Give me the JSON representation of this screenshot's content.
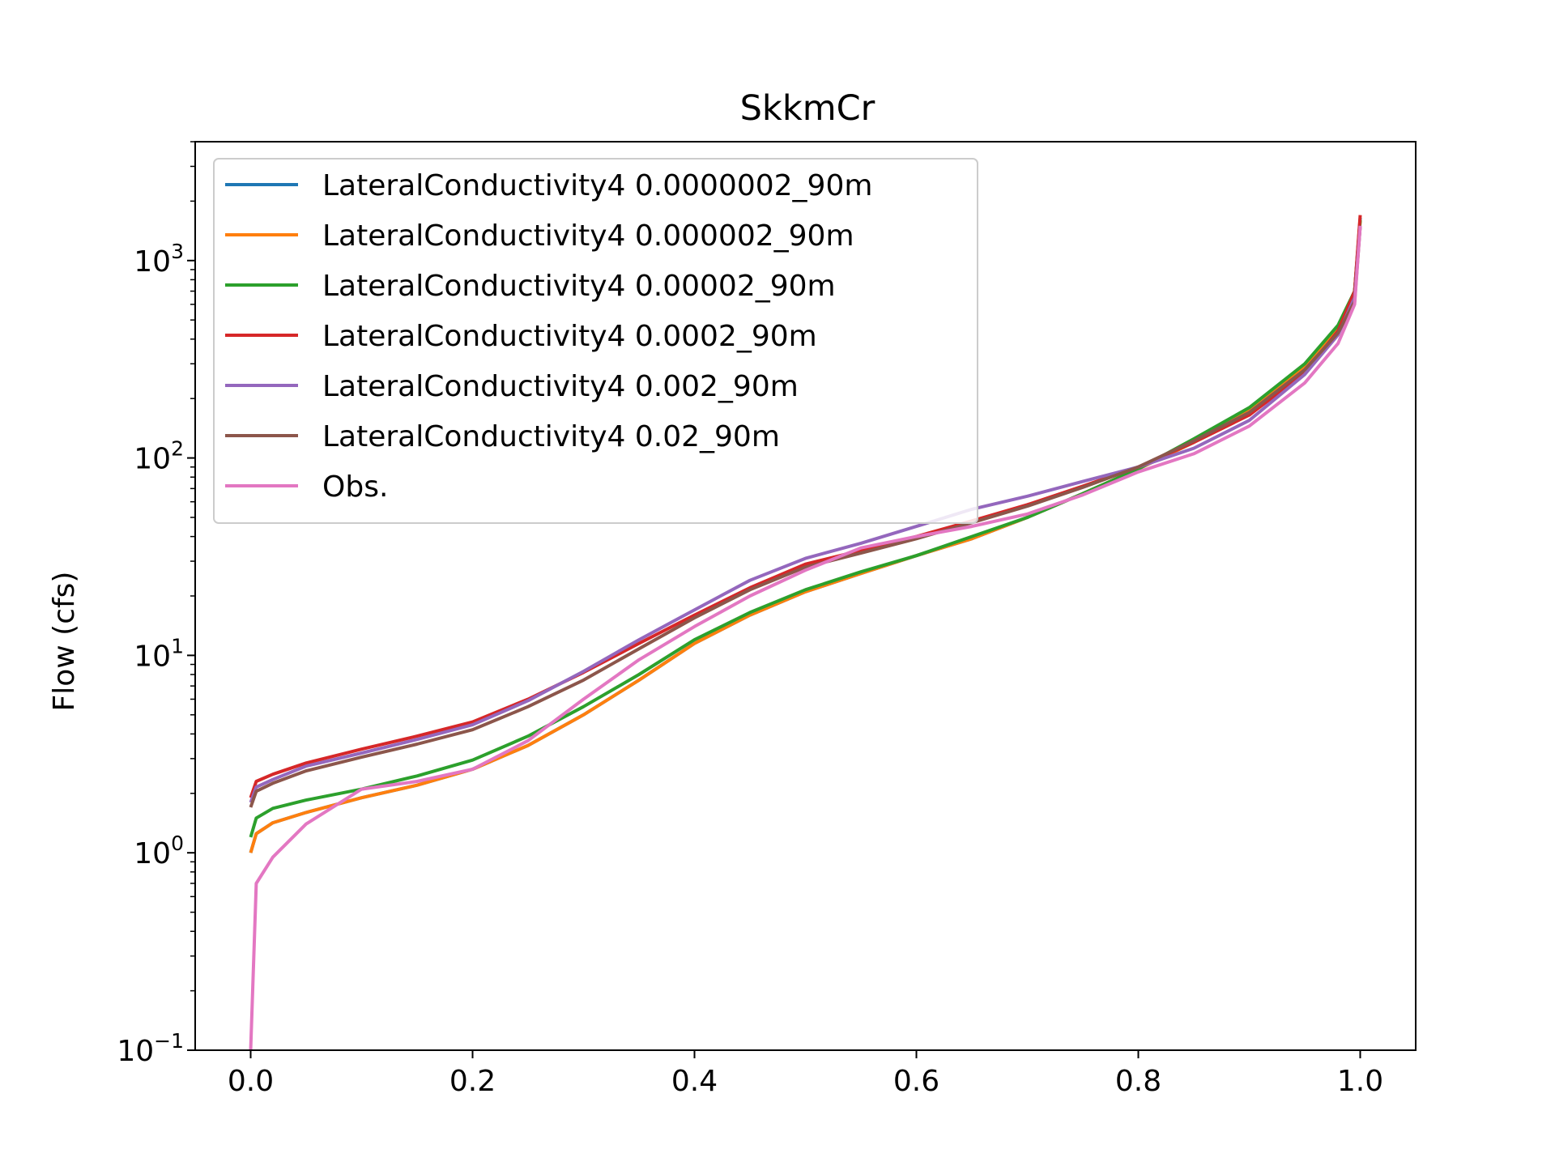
{
  "chart_data": {
    "type": "line",
    "title": "SkkmCr",
    "xlabel": "",
    "ylabel": "Flow (cfs)",
    "yscale": "log",
    "xlim": [
      -0.05,
      1.05
    ],
    "ylim": [
      0.1,
      4000
    ],
    "xticks": [
      0.0,
      0.2,
      0.4,
      0.6,
      0.8,
      1.0
    ],
    "xtick_labels": [
      "0.0",
      "0.2",
      "0.4",
      "0.6",
      "0.8",
      "1.0"
    ],
    "yticks": [
      {
        "value": 0.1,
        "base": "10",
        "exp": "−1"
      },
      {
        "value": 1,
        "base": "10",
        "exp": "0"
      },
      {
        "value": 10,
        "base": "10",
        "exp": "1"
      },
      {
        "value": 100,
        "base": "10",
        "exp": "2"
      },
      {
        "value": 1000,
        "base": "10",
        "exp": "3"
      }
    ],
    "grid": false,
    "legend_position": "upper-left",
    "x": [
      0.0,
      0.005,
      0.02,
      0.05,
      0.1,
      0.15,
      0.2,
      0.25,
      0.3,
      0.35,
      0.4,
      0.45,
      0.5,
      0.55,
      0.6,
      0.65,
      0.7,
      0.75,
      0.8,
      0.85,
      0.9,
      0.95,
      0.98,
      0.995,
      1.0
    ],
    "series": [
      {
        "name": "LateralConductivity4 0.0000002_90m",
        "color": "#1f77b4",
        "values": [
          1.0,
          1.25,
          1.42,
          1.6,
          1.9,
          2.2,
          2.65,
          3.5,
          5.0,
          7.5,
          11.5,
          16.0,
          21.0,
          26.0,
          32.0,
          39.0,
          50.0,
          66.0,
          88.0,
          120.0,
          175.0,
          290.0,
          450.0,
          700.0,
          1650.0
        ]
      },
      {
        "name": "LateralConductivity4 0.000002_90m",
        "color": "#ff7f0e",
        "values": [
          1.0,
          1.25,
          1.42,
          1.6,
          1.9,
          2.2,
          2.65,
          3.5,
          5.0,
          7.5,
          11.5,
          16.0,
          21.0,
          26.0,
          32.0,
          39.0,
          50.0,
          66.0,
          88.0,
          120.0,
          175.0,
          290.0,
          450.0,
          700.0,
          1600.0
        ]
      },
      {
        "name": "LateralConductivity4 0.00002_90m",
        "color": "#2ca02c",
        "values": [
          1.2,
          1.5,
          1.68,
          1.85,
          2.1,
          2.45,
          2.95,
          3.9,
          5.5,
          8.0,
          12.0,
          16.5,
          21.5,
          26.5,
          32.0,
          40.0,
          50.0,
          66.0,
          88.0,
          125.0,
          180.0,
          300.0,
          470.0,
          700.0,
          1600.0
        ]
      },
      {
        "name": "LateralConductivity4 0.0002_90m",
        "color": "#d62728",
        "values": [
          1.9,
          2.3,
          2.5,
          2.85,
          3.35,
          3.9,
          4.6,
          6.0,
          8.2,
          11.5,
          16.0,
          22.0,
          29.0,
          34.0,
          40.0,
          48.0,
          58.0,
          72.0,
          90.0,
          120.0,
          165.0,
          270.0,
          440.0,
          700.0,
          1700.0
        ]
      },
      {
        "name": "LateralConductivity4 0.002_90m",
        "color": "#9467bd",
        "values": [
          1.8,
          2.15,
          2.35,
          2.75,
          3.2,
          3.75,
          4.45,
          5.9,
          8.3,
          12.0,
          17.0,
          24.0,
          31.0,
          37.0,
          45.0,
          55.0,
          64.0,
          76.0,
          90.0,
          112.0,
          155.0,
          265.0,
          420.0,
          650.0,
          1500.0
        ]
      },
      {
        "name": "LateralConductivity4 0.02_90m",
        "color": "#8c564b",
        "values": [
          1.7,
          2.05,
          2.25,
          2.6,
          3.05,
          3.55,
          4.2,
          5.5,
          7.5,
          10.8,
          15.5,
          21.5,
          28.0,
          33.0,
          39.0,
          47.0,
          57.0,
          71.0,
          90.0,
          122.0,
          170.0,
          280.0,
          430.0,
          620.0,
          1500.0
        ]
      },
      {
        "name": "Obs.",
        "color": "#e377c2",
        "values": [
          0.1,
          0.7,
          0.95,
          1.4,
          2.1,
          2.3,
          2.65,
          3.7,
          6.0,
          9.5,
          14.0,
          20.0,
          27.0,
          35.0,
          40.0,
          45.0,
          52.0,
          65.0,
          85.0,
          105.0,
          145.0,
          240.0,
          380.0,
          600.0,
          1500.0
        ]
      }
    ]
  }
}
